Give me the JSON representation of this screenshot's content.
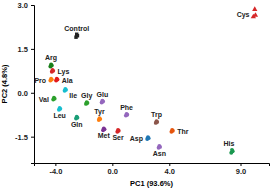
{
  "chart_data": {
    "type": "scatter",
    "x_label": "PC1 (93.6%)",
    "y_label": "PC2 (4.8%)",
    "xlim": [
      -5.5,
      11.0
    ],
    "ylim": [
      -2.4,
      3.0
    ],
    "xticks": [
      {
        "value": -4,
        "label": "-4.0"
      },
      {
        "value": 0,
        "label": "0.0"
      },
      {
        "value": 4,
        "label": "4.0"
      },
      {
        "value": 9,
        "label": "9.0"
      }
    ],
    "yticks": [
      {
        "value": 3,
        "label": "3.0"
      },
      {
        "value": 1.5,
        "label": "1.5"
      },
      {
        "value": 0,
        "label": "0.0"
      },
      {
        "value": -1.5,
        "label": "-1.5"
      }
    ],
    "series": [
      {
        "name": "Control",
        "color": "#222222",
        "marker": "square",
        "x": [
          -2.55,
          -2.5,
          -2.45
        ],
        "y": [
          1.9,
          2.0,
          1.95
        ]
      },
      {
        "name": "Cys",
        "color": "#d62728",
        "marker": "triangle",
        "x": [
          9.9,
          10.05,
          10.0
        ],
        "y": [
          2.6,
          2.65,
          2.85
        ]
      },
      {
        "name": "Arg",
        "color": "#1a7f1a",
        "marker": "circle",
        "x": [
          -4.35,
          -4.3,
          -4.25
        ],
        "y": [
          0.9,
          0.97,
          0.93
        ]
      },
      {
        "name": "Lys",
        "color": "#d62728",
        "marker": "circle",
        "x": [
          -4.25,
          -4.2,
          -4.15
        ],
        "y": [
          0.72,
          0.78,
          0.75
        ]
      },
      {
        "name": "Pro",
        "color": "#ff7f0e",
        "marker": "circle",
        "x": [
          -4.35,
          -4.3,
          -4.25
        ],
        "y": [
          0.42,
          0.48,
          0.45
        ]
      },
      {
        "name": "Ala",
        "color": "#e31a1c",
        "marker": "circle",
        "x": [
          -3.95,
          -3.9,
          -3.85
        ],
        "y": [
          0.42,
          0.48,
          0.45
        ]
      },
      {
        "name": "Ile",
        "color": "#17becf",
        "marker": "circle",
        "x": [
          -3.35,
          -3.3,
          -3.25
        ],
        "y": [
          0.07,
          0.13,
          0.1
        ]
      },
      {
        "name": "Val",
        "color": "#2ca02c",
        "marker": "circle",
        "x": [
          -4.15,
          -4.1,
          -4.05
        ],
        "y": [
          -0.23,
          -0.17,
          -0.2
        ]
      },
      {
        "name": "Leu",
        "color": "#17becf",
        "marker": "circle",
        "x": [
          -3.75,
          -3.7,
          -3.65
        ],
        "y": [
          -0.58,
          -0.52,
          -0.55
        ]
      },
      {
        "name": "Gly",
        "color": "#2ca02c",
        "marker": "circle",
        "x": [
          -1.85,
          -1.8,
          -1.75
        ],
        "y": [
          -0.38,
          -0.32,
          -0.35
        ]
      },
      {
        "name": "Glu",
        "color": "#9467bd",
        "marker": "circle",
        "x": [
          -0.75,
          -0.7,
          -0.65
        ],
        "y": [
          -0.33,
          -0.27,
          -0.3
        ]
      },
      {
        "name": "Gln",
        "color": "#1b9e77",
        "marker": "circle",
        "x": [
          -2.55,
          -2.5,
          -2.45
        ],
        "y": [
          -0.88,
          -0.82,
          -0.85
        ]
      },
      {
        "name": "Tyr",
        "color": "#ff7f0e",
        "marker": "circle",
        "x": [
          -0.95,
          -0.9,
          -0.85
        ],
        "y": [
          -0.93,
          -0.87,
          -0.9
        ]
      },
      {
        "name": "Phe",
        "color": "#9467bd",
        "marker": "circle",
        "x": [
          0.95,
          1.0,
          1.05
        ],
        "y": [
          -0.78,
          -0.72,
          -0.75
        ]
      },
      {
        "name": "Met",
        "color": "#7b3294",
        "marker": "circle",
        "x": [
          -0.65,
          -0.6,
          -0.55
        ],
        "y": [
          -1.28,
          -1.22,
          -1.25
        ]
      },
      {
        "name": "Ser",
        "color": "#d62728",
        "marker": "circle",
        "x": [
          0.35,
          0.4,
          0.45
        ],
        "y": [
          -1.33,
          -1.27,
          -1.3
        ]
      },
      {
        "name": "Trp",
        "color": "#8c564b",
        "marker": "circle",
        "x": [
          3.05,
          3.1,
          3.15
        ],
        "y": [
          -1.03,
          -0.97,
          -1.0
        ]
      },
      {
        "name": "Thr",
        "color": "#e6550d",
        "marker": "circle",
        "x": [
          4.15,
          4.2,
          4.25
        ],
        "y": [
          -1.33,
          -1.27,
          -1.3
        ]
      },
      {
        "name": "Asp",
        "color": "#1f77b4",
        "marker": "circle",
        "x": [
          2.45,
          2.5,
          2.55
        ],
        "y": [
          -1.58,
          -1.52,
          -1.55
        ]
      },
      {
        "name": "Asn",
        "color": "#9467bd",
        "marker": "circle",
        "x": [
          3.25,
          3.3,
          3.35
        ],
        "y": [
          -1.88,
          -1.82,
          -1.85
        ]
      },
      {
        "name": "His",
        "color": "#1a9850",
        "marker": "circle",
        "x": [
          8.35,
          8.4,
          8.45
        ],
        "y": [
          -2.05,
          -1.95,
          -2.0
        ]
      }
    ]
  }
}
